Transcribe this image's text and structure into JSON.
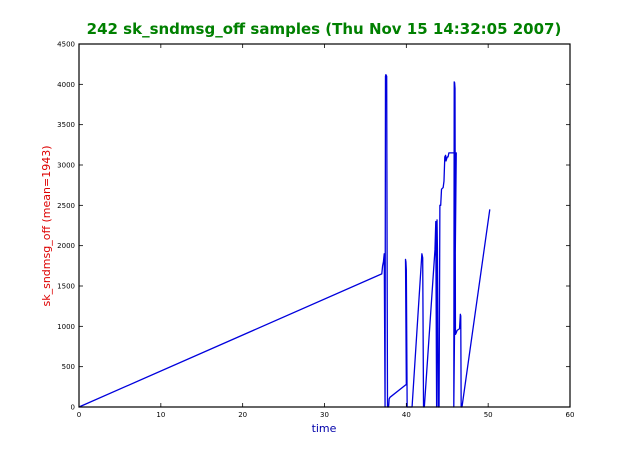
{
  "chart_data": {
    "type": "line",
    "title": "242 sk_sndmsg_off samples (Thu Nov 15 14:32:05 2007)",
    "xlabel": "time",
    "ylabel": "sk_sndmsg_off (mean=1943)",
    "xlim": [
      0,
      60
    ],
    "ylim": [
      0,
      4500
    ],
    "x_ticks": [
      0,
      10,
      20,
      30,
      40,
      50,
      60
    ],
    "y_ticks": [
      0,
      500,
      1000,
      1500,
      2000,
      2500,
      3000,
      3500,
      4000,
      4500
    ],
    "grid": false,
    "legend": "none",
    "colors": {
      "title": "#008000",
      "xlabel": "#0000aa",
      "ylabel": "#dd0000",
      "line": "#0000dd",
      "frame": "#000000",
      "background": "#ffffff"
    },
    "series": [
      {
        "x": [
          0,
          37.0,
          37.1,
          37.2,
          37.25,
          37.3,
          37.4,
          37.45,
          37.5,
          37.55,
          37.6,
          37.65,
          37.7,
          37.75,
          37.8,
          37.85,
          37.9,
          38.0,
          40.0,
          39.9,
          39.95,
          40.0,
          40.1,
          40.2,
          40.7,
          41.9,
          42.0,
          42.1,
          42.2,
          43.5,
          43.6,
          43.7,
          43.75,
          43.8,
          43.9,
          44.0,
          44.1,
          44.2,
          44.3,
          44.5,
          44.6,
          44.7,
          44.8,
          44.85,
          45.0,
          45.1,
          45.2,
          46.1,
          45.8,
          45.85,
          45.9,
          45.95,
          46.0,
          46.1,
          46.2,
          46.5,
          46.6,
          46.65,
          46.7,
          46.8,
          50.2
        ],
        "y": [
          0,
          1650,
          1750,
          1800,
          1850,
          1900,
          0,
          4100,
          4120,
          4110,
          4100,
          1900,
          0,
          30,
          0,
          20,
          100,
          120,
          280,
          1830,
          1800,
          1700,
          0,
          0,
          0,
          1900,
          1850,
          0,
          0,
          1950,
          2300,
          0,
          2320,
          1950,
          0,
          0,
          2500,
          2500,
          2700,
          2720,
          2800,
          3100,
          3120,
          3050,
          3100,
          3100,
          3150,
          3150,
          0,
          4030,
          4020,
          3950,
          900,
          920,
          950,
          970,
          1150,
          1130,
          0,
          0,
          2450
        ]
      }
    ]
  }
}
